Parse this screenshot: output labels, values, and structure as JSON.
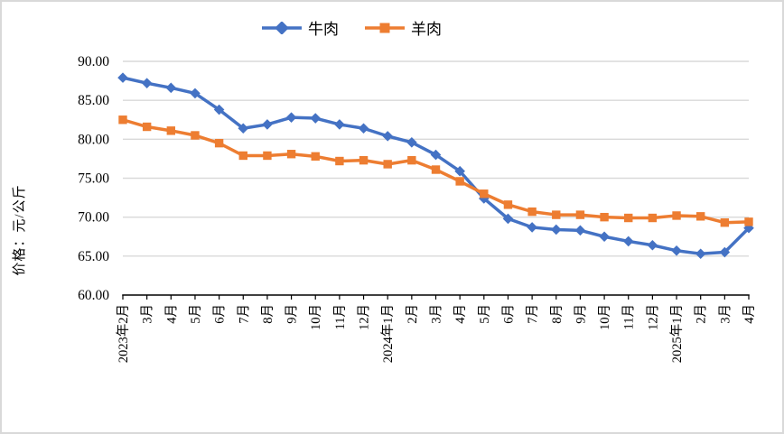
{
  "chart_data": {
    "type": "line",
    "title": "",
    "xlabel": "",
    "ylabel": "价格：元/公斤",
    "ylim": [
      60,
      90
    ],
    "ytick_step": 5,
    "ytick_labels": [
      "60.00",
      "65.00",
      "70.00",
      "75.00",
      "80.00",
      "85.00",
      "90.00"
    ],
    "grid": true,
    "legend_position": "top-center",
    "categories": [
      "2023年2月",
      "3月",
      "4月",
      "5月",
      "6月",
      "7月",
      "8月",
      "9月",
      "10月",
      "11月",
      "12月",
      "2024年1月",
      "2月",
      "3月",
      "4月",
      "5月",
      "6月",
      "7月",
      "8月",
      "9月",
      "10月",
      "11月",
      "12月",
      "2025年1月",
      "2月",
      "3月",
      "4月"
    ],
    "series": [
      {
        "name": "牛肉",
        "color": "#4472C4",
        "marker": "diamond",
        "values": [
          87.9,
          87.2,
          86.6,
          85.9,
          83.8,
          81.4,
          81.9,
          82.8,
          82.7,
          81.9,
          81.4,
          80.4,
          79.6,
          78.0,
          75.9,
          72.4,
          69.8,
          68.7,
          68.4,
          68.3,
          67.5,
          66.9,
          66.4,
          65.7,
          65.3,
          65.5,
          68.6
        ]
      },
      {
        "name": "羊肉",
        "color": "#ED7D31",
        "marker": "square",
        "values": [
          82.5,
          81.6,
          81.1,
          80.5,
          79.5,
          77.9,
          77.9,
          78.1,
          77.8,
          77.2,
          77.3,
          76.8,
          77.3,
          76.1,
          74.6,
          73.0,
          71.6,
          70.7,
          70.3,
          70.3,
          70.0,
          69.9,
          69.9,
          70.2,
          70.1,
          69.3,
          69.4
        ]
      }
    ]
  },
  "colors": {
    "gridline": "#D9D9D9",
    "axis": "#000000",
    "frame_border": "#D9D9D9",
    "background": "#FFFFFF",
    "text": "#000000"
  }
}
